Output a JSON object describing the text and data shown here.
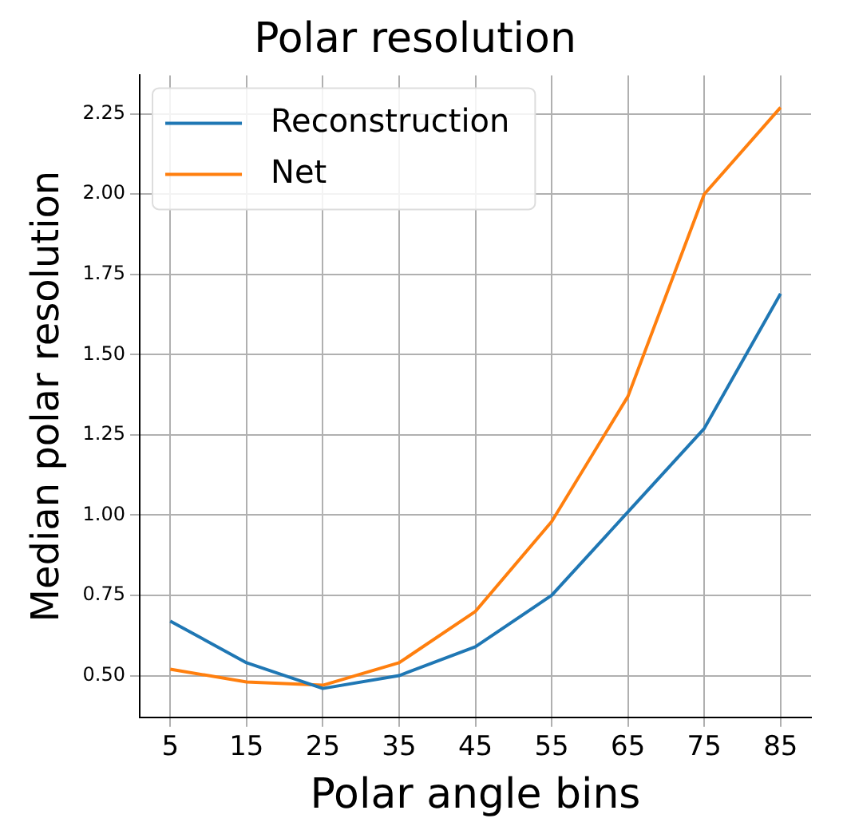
{
  "chart_data": {
    "type": "line",
    "title": "Polar resolution",
    "xlabel": "Polar angle bins",
    "ylabel": "Median polar resolution",
    "x": [
      5,
      15,
      25,
      35,
      45,
      55,
      65,
      75,
      85
    ],
    "series": [
      {
        "name": "Reconstruction",
        "color": "#1f77b4",
        "values": [
          0.67,
          0.54,
          0.46,
          0.5,
          0.59,
          0.75,
          1.01,
          1.27,
          1.69
        ]
      },
      {
        "name": "Net",
        "color": "#ff7f0e",
        "values": [
          0.52,
          0.48,
          0.47,
          0.54,
          0.7,
          0.98,
          1.37,
          2.0,
          2.27
        ]
      }
    ],
    "xlim": [
      1,
      89
    ],
    "xticks": [
      5,
      15,
      25,
      35,
      45,
      55,
      65,
      75,
      85
    ],
    "ylim": [
      0.37,
      2.37
    ],
    "yticks": [
      {
        "value": 0.5,
        "label": "0.50"
      },
      {
        "value": 0.75,
        "label": "0.75"
      },
      {
        "value": 1,
        "label": "1.00"
      },
      {
        "value": 1.25,
        "label": "1.25"
      },
      {
        "value": 1.5,
        "label": "1.50"
      },
      {
        "value": 1.75,
        "label": "1.75"
      },
      {
        "value": 2,
        "label": "2.00"
      },
      {
        "value": 2.25,
        "label": "2.25"
      }
    ],
    "grid": true,
    "legend": "top left",
    "marker": "none",
    "line_style": "solid"
  }
}
